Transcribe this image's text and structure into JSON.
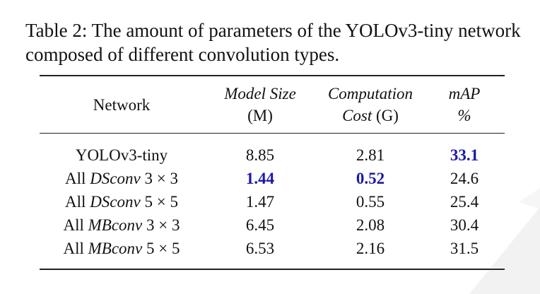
{
  "caption": "Table 2: The amount of parameters of the YOLOv3-tiny network composed of different convolution types.",
  "table": {
    "headers": {
      "network": "Network",
      "model_size": {
        "name": "Model Size",
        "unit": "(M)"
      },
      "computation_cost": {
        "name": "Computation",
        "name2": "Cost",
        "unit": "(G)"
      },
      "map": {
        "name": "mAP",
        "unit": "%"
      }
    },
    "rows": [
      {
        "prefix": "",
        "name": "YOLOv3-tiny",
        "kernel": "",
        "model_size": "8.85",
        "computation_cost": "2.81",
        "map": "33.1"
      },
      {
        "prefix": "All",
        "name": "DSconv",
        "kernel": "3 × 3",
        "model_size": "1.44",
        "computation_cost": "0.52",
        "map": "24.6"
      },
      {
        "prefix": "All",
        "name": "DSconv",
        "kernel": "5 × 5",
        "model_size": "1.47",
        "computation_cost": "0.55",
        "map": "25.4"
      },
      {
        "prefix": "All",
        "name": "MBconv",
        "kernel": "3 × 3",
        "model_size": "6.45",
        "computation_cost": "2.08",
        "map": "30.4"
      },
      {
        "prefix": "All",
        "name": "MBconv",
        "kernel": "5 × 5",
        "model_size": "6.53",
        "computation_cost": "2.16",
        "map": "31.5"
      }
    ]
  },
  "colors": {
    "best_value": "#1a1aa8",
    "rule": "#222222"
  }
}
